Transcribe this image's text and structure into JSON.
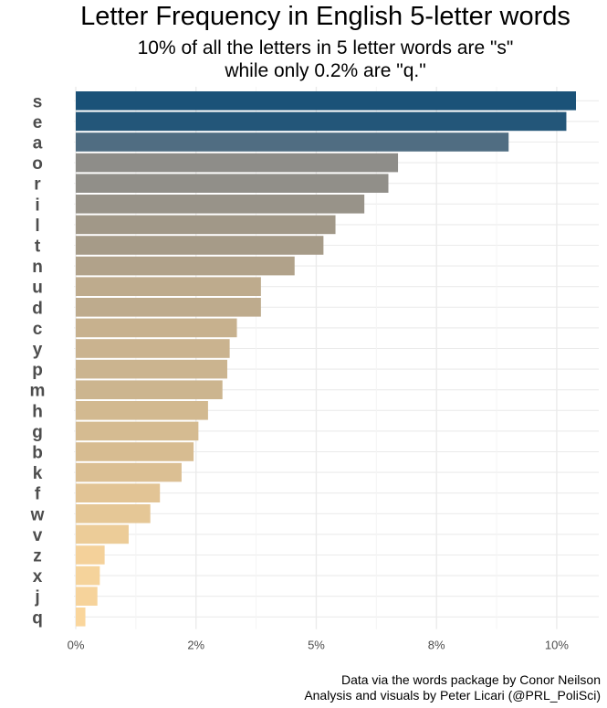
{
  "chart_data": {
    "type": "bar",
    "orientation": "horizontal",
    "title": "Letter Frequency in English 5-letter words",
    "subtitle": [
      "10% of all the letters in 5 letter words are \"s\"",
      "while only 0.2% are \"q.\""
    ],
    "categories": [
      "s",
      "e",
      "a",
      "o",
      "r",
      "i",
      "l",
      "t",
      "n",
      "u",
      "d",
      "c",
      "y",
      "p",
      "m",
      "h",
      "g",
      "b",
      "k",
      "f",
      "w",
      "v",
      "z",
      "x",
      "j",
      "q"
    ],
    "values": [
      10.4,
      10.2,
      9.0,
      6.7,
      6.5,
      6.0,
      5.4,
      5.15,
      4.55,
      3.85,
      3.85,
      3.35,
      3.2,
      3.15,
      3.05,
      2.75,
      2.55,
      2.45,
      2.2,
      1.75,
      1.55,
      1.1,
      0.6,
      0.5,
      0.45,
      0.2
    ],
    "xlim": [
      0,
      10.8
    ],
    "xticks": [
      0,
      2.5,
      5,
      7.5,
      10
    ],
    "xtick_labels": [
      "0%",
      "2%",
      "5%",
      "8%",
      "10%"
    ],
    "grid": true,
    "legend": "none",
    "color_gradient": [
      "#1b5278",
      "#7c838a",
      "#a39988",
      "#d2b990",
      "#fad69c"
    ],
    "caption": [
      "Data via the words package by Conor Neilson",
      "Analysis and visuals by Peter Licari (@PRL_PoliSci)"
    ]
  }
}
